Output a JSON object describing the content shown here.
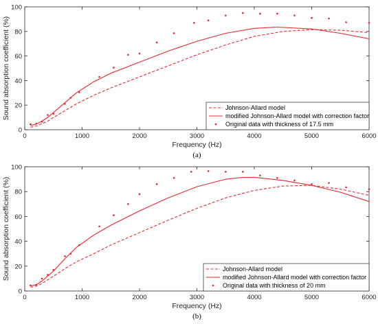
{
  "colors": {
    "series": "#e8262b",
    "axis": "#262626",
    "legend_border": "#262626"
  },
  "chart_data": [
    {
      "type": "line",
      "panel_label": "(a)",
      "xlabel": "Frequency (Hz)",
      "ylabel": "Sound absorption coefficient (%)",
      "xlim": [
        0,
        6000
      ],
      "ylim": [
        0,
        100
      ],
      "xticks": [
        0,
        1000,
        2000,
        3000,
        4000,
        5000,
        6000
      ],
      "yticks": [
        0,
        20,
        40,
        60,
        80,
        100
      ],
      "grid": false,
      "legend_position": "bottom-right",
      "series": [
        {
          "name": "Johnson-Allard model",
          "style": "dashed",
          "x": [
            100,
            200,
            300,
            400,
            500,
            700,
            900,
            1200,
            1500,
            2000,
            2500,
            3000,
            3500,
            4000,
            4500,
            5000,
            5500,
            6000
          ],
          "y": [
            2,
            3,
            5,
            7,
            10,
            15.5,
            21,
            28,
            34,
            43,
            52,
            61,
            69,
            76,
            80,
            81.5,
            81,
            79
          ]
        },
        {
          "name": "modified Johnson-Allard model with correction factor",
          "style": "solid",
          "x": [
            100,
            200,
            300,
            400,
            500,
            700,
            900,
            1200,
            1500,
            2000,
            2500,
            3000,
            3500,
            4000,
            4400,
            5000,
            5500,
            6000
          ],
          "y": [
            3.5,
            4.5,
            7,
            10,
            14,
            22,
            30,
            39,
            46,
            55,
            64,
            72,
            78.5,
            82.5,
            83.5,
            82,
            78.5,
            74
          ]
        },
        {
          "name": "Original data with thickness of 17.5 mm",
          "style": "points",
          "x": [
            100,
            200,
            300,
            400,
            500,
            700,
            800,
            950,
            1300,
            1550,
            1800,
            2000,
            2300,
            2600,
            2950,
            3200,
            3500,
            3800,
            4100,
            4400,
            4700,
            5000,
            5300,
            5600,
            6000
          ],
          "y": [
            4.5,
            5,
            6.5,
            12,
            13,
            21,
            26,
            30.5,
            43,
            50.5,
            61,
            62,
            71,
            78.5,
            87,
            89,
            93,
            95,
            94.5,
            94.5,
            93,
            91,
            90.5,
            87.5,
            87
          ]
        }
      ]
    },
    {
      "type": "line",
      "panel_label": "(b)",
      "xlabel": "Frequency (Hz)",
      "ylabel": "Sound absorption coefficient (%)",
      "xlim": [
        0,
        6000
      ],
      "ylim": [
        0,
        100
      ],
      "xticks": [
        0,
        1000,
        2000,
        3000,
        4000,
        5000,
        6000
      ],
      "yticks": [
        0,
        20,
        40,
        60,
        80,
        100
      ],
      "grid": false,
      "legend_position": "bottom-right",
      "series": [
        {
          "name": "Johnson-Allard model",
          "style": "dashed",
          "x": [
            100,
            200,
            300,
            400,
            500,
            700,
            900,
            1200,
            1500,
            2000,
            2500,
            3000,
            3500,
            4000,
            4500,
            5000,
            5500,
            6000
          ],
          "y": [
            3,
            4,
            6,
            9,
            12,
            18,
            23.5,
            30,
            37,
            47,
            57,
            66.5,
            75,
            81,
            84.5,
            85,
            82,
            77
          ]
        },
        {
          "name": "modified Johnson-Allard model with correction factor",
          "style": "solid",
          "x": [
            100,
            200,
            300,
            400,
            500,
            700,
            900,
            1200,
            1500,
            2000,
            2500,
            3000,
            3500,
            3800,
            4000,
            4500,
            5000,
            5500,
            6000
          ],
          "y": [
            4,
            5,
            8,
            12,
            16,
            26,
            35,
            45,
            53,
            64.5,
            75,
            84,
            90,
            91.5,
            91.5,
            89,
            85,
            79.5,
            72
          ]
        },
        {
          "name": "Original data with thickness of 20 mm",
          "style": "points",
          "x": [
            100,
            200,
            300,
            400,
            500,
            700,
            800,
            950,
            1300,
            1550,
            1800,
            2000,
            2300,
            2600,
            2900,
            3200,
            3500,
            3800,
            4100,
            4400,
            4700,
            5000,
            5300,
            5600,
            6000
          ],
          "y": [
            4.5,
            5,
            10,
            13,
            17,
            28,
            30,
            37,
            52,
            61,
            70,
            78,
            86,
            91,
            96,
            96.5,
            96,
            96,
            93,
            91,
            89,
            86,
            87,
            83.5,
            82
          ]
        }
      ]
    }
  ]
}
